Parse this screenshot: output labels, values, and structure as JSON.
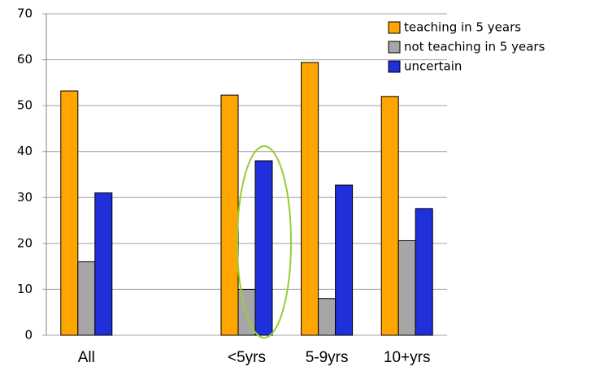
{
  "chart_data": {
    "type": "bar",
    "categories": [
      "All",
      null,
      "<5yrs",
      "5-9yrs",
      "10+yrs"
    ],
    "series": [
      {
        "name": "teaching in 5 years",
        "color": "#ffa500",
        "values": [
          53.2,
          null,
          52.3,
          59.4,
          52
        ]
      },
      {
        "name": "not teaching in 5 years",
        "color": "#a6a6a6",
        "values": [
          16,
          null,
          10,
          8,
          20.6
        ]
      },
      {
        "name": "uncertain",
        "color": "#1f2fd9",
        "values": [
          31,
          null,
          38,
          32.7,
          27.6
        ]
      }
    ],
    "ylim": [
      0,
      70
    ],
    "yticks": [
      0,
      10,
      20,
      30,
      40,
      50,
      60,
      70
    ],
    "grid": true,
    "legend": "top-right"
  }
}
